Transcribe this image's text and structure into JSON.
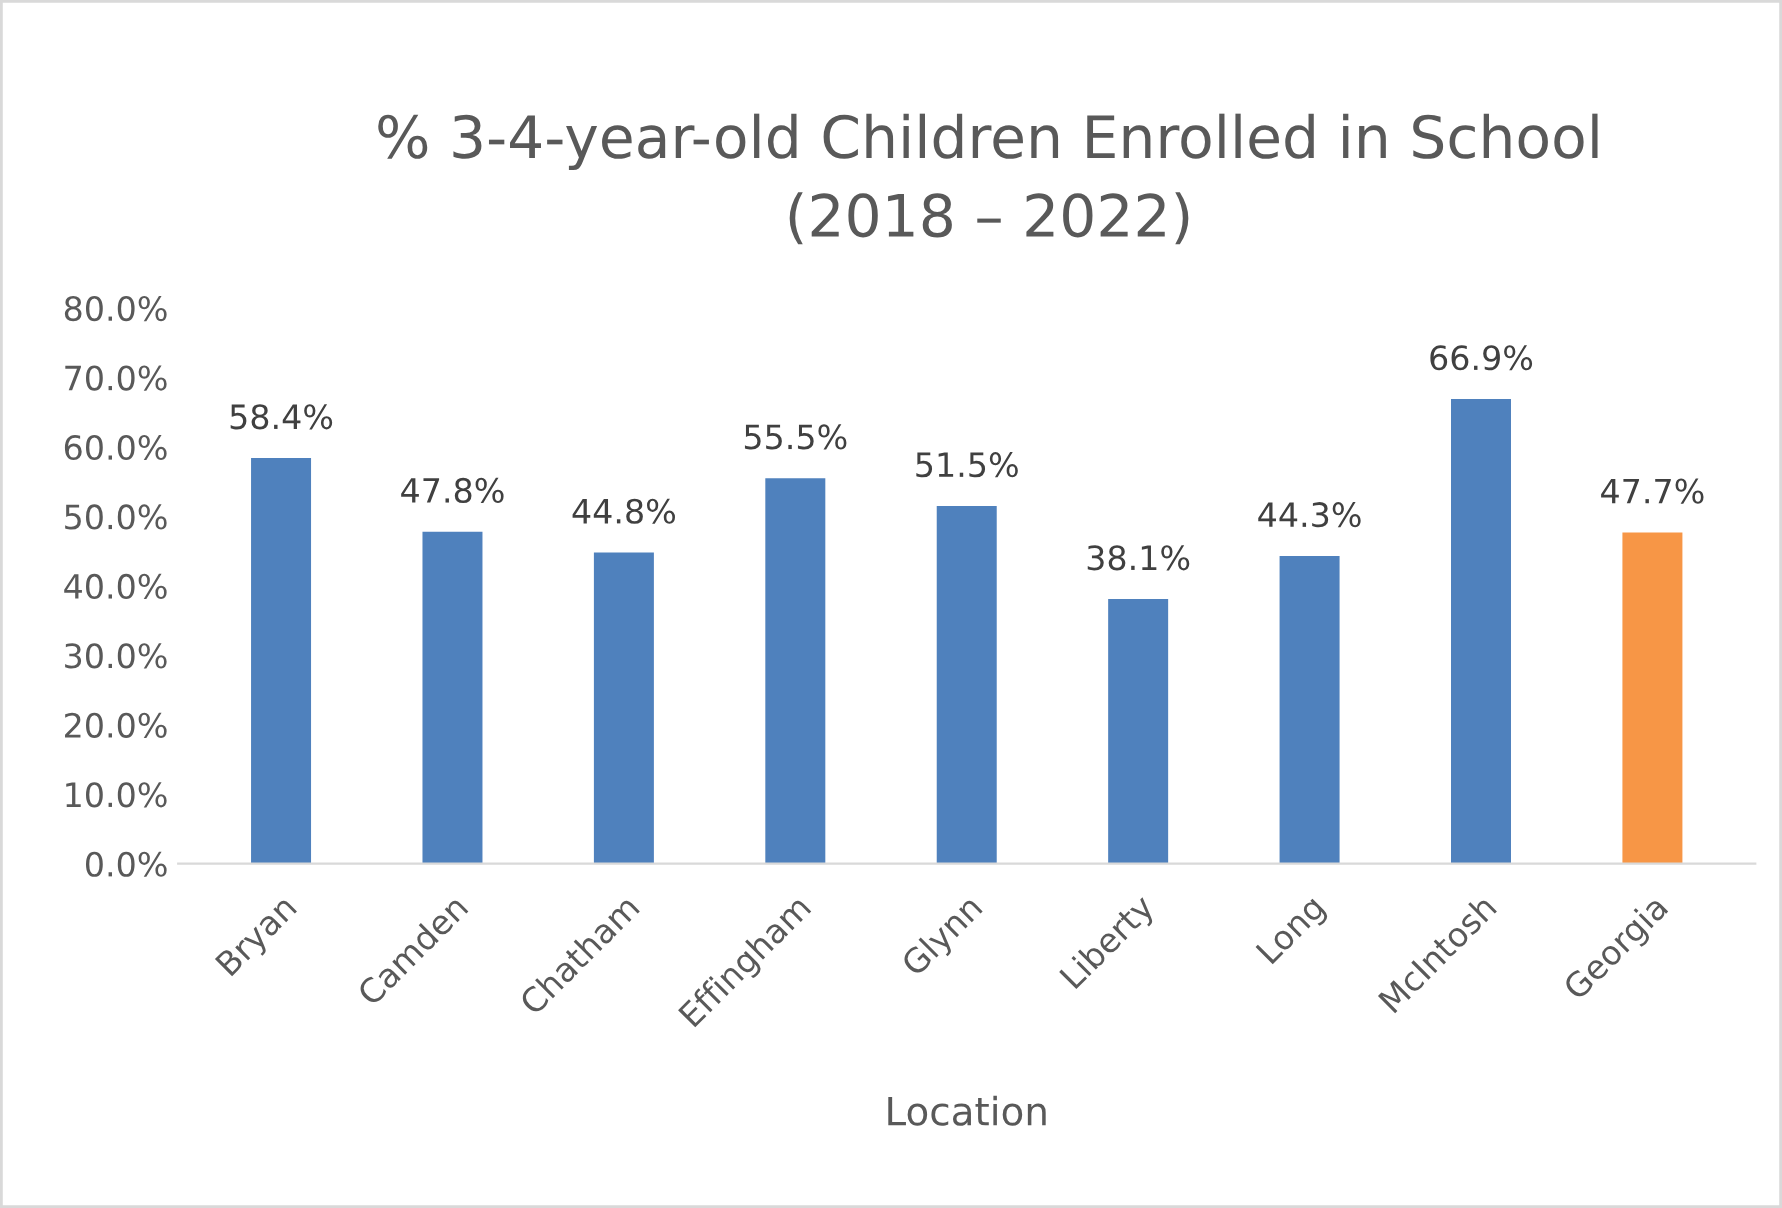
{
  "chart_data": {
    "type": "bar",
    "title": "% 3-4-year-old Children Enrolled in School\n(2018 – 2022)",
    "xlabel": "Location",
    "categories": [
      "Bryan",
      "Camden",
      "Chatham",
      "Effingham",
      "Glynn",
      "Liberty",
      "Long",
      "McIntosh",
      "Georgia"
    ],
    "values": [
      58.4,
      47.8,
      44.8,
      55.5,
      51.5,
      38.1,
      44.3,
      66.9,
      47.7
    ],
    "colors": [
      "#4f81bd",
      "#4f81bd",
      "#4f81bd",
      "#4f81bd",
      "#4f81bd",
      "#4f81bd",
      "#4f81bd",
      "#4f81bd",
      "#f79646"
    ],
    "value_labels": [
      "58.4%",
      "47.8%",
      "44.8%",
      "55.5%",
      "51.5%",
      "38.1%",
      "44.3%",
      "66.9%",
      "47.7%"
    ],
    "ylim": [
      0,
      80
    ],
    "yticks": [
      {
        "value": 0,
        "label": "0.0%"
      },
      {
        "value": 10,
        "label": "10.0%"
      },
      {
        "value": 20,
        "label": "20.0%"
      },
      {
        "value": 30,
        "label": "30.0%"
      },
      {
        "value": 40,
        "label": "40.0%"
      },
      {
        "value": 50,
        "label": "50.0%"
      },
      {
        "value": 60,
        "label": "60.0%"
      },
      {
        "value": 70,
        "label": "70.0%"
      },
      {
        "value": 80,
        "label": "80.0%"
      }
    ],
    "grid": false,
    "legend": false
  }
}
